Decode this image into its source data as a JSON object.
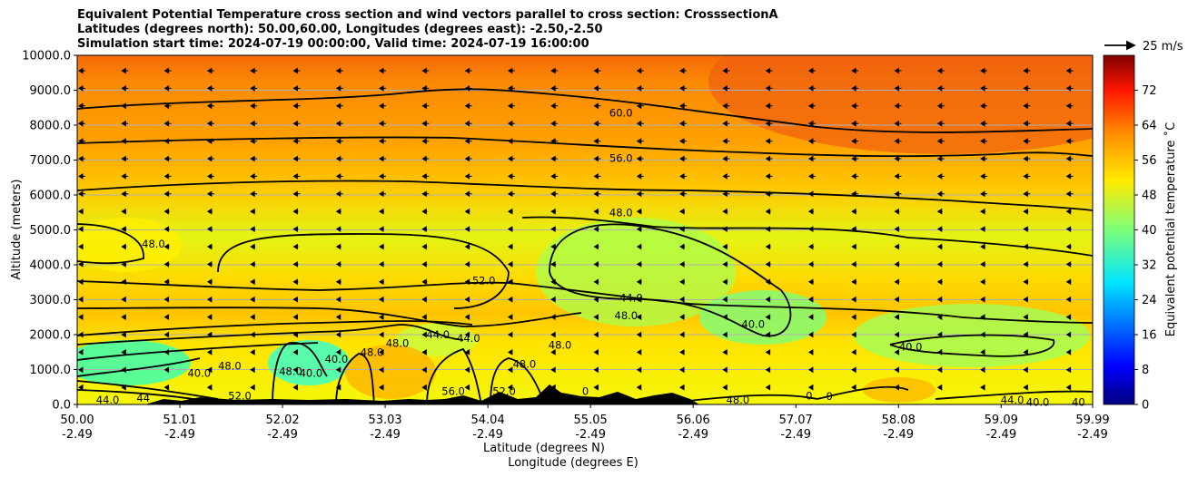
{
  "chart_data": {
    "type": "heatmap",
    "title_lines": [
      "Equivalent Potential Temperature cross section and wind vectors parallel to cross section: CrosssectionA",
      "Latitudes (degrees north): 50.00,60.00, Longitudes (degrees east): -2.50,-2.50",
      "Simulation start time: 2024-07-19 00:00:00, Valid time: 2024-07-19 16:00:00"
    ],
    "xlabel_lines": [
      "Latitude (degrees N)",
      "Longitude (degrees E)"
    ],
    "ylabel": "Altitude (meters)",
    "xlim": [
      50.0,
      59.99
    ],
    "ylim": [
      0,
      10000
    ],
    "x_ticks": [
      {
        "lat": "50.00",
        "lon": "-2.49",
        "v": 50.0
      },
      {
        "lat": "51.01",
        "lon": "-2.49",
        "v": 51.01
      },
      {
        "lat": "52.02",
        "lon": "-2.49",
        "v": 52.02
      },
      {
        "lat": "53.03",
        "lon": "-2.49",
        "v": 53.03
      },
      {
        "lat": "54.04",
        "lon": "-2.49",
        "v": 54.04
      },
      {
        "lat": "55.05",
        "lon": "-2.49",
        "v": 55.05
      },
      {
        "lat": "56.06",
        "lon": "-2.49",
        "v": 56.06
      },
      {
        "lat": "57.07",
        "lon": "-2.49",
        "v": 57.07
      },
      {
        "lat": "58.08",
        "lon": "-2.49",
        "v": 58.08
      },
      {
        "lat": "59.09",
        "lon": "-2.49",
        "v": 59.09
      },
      {
        "lat": "59.99",
        "lon": "-2.49",
        "v": 59.99
      }
    ],
    "y_ticks": [
      {
        "label": "0.0",
        "v": 0
      },
      {
        "label": "1000.0",
        "v": 1000
      },
      {
        "label": "2000.0",
        "v": 2000
      },
      {
        "label": "3000.0",
        "v": 3000
      },
      {
        "label": "4000.0",
        "v": 4000
      },
      {
        "label": "5000.0",
        "v": 5000
      },
      {
        "label": "6000.0",
        "v": 6000
      },
      {
        "label": "7000.0",
        "v": 7000
      },
      {
        "label": "8000.0",
        "v": 8000
      },
      {
        "label": "9000.0",
        "v": 9000
      },
      {
        "label": "10000.0",
        "v": 10000
      }
    ],
    "grid": "horizontal",
    "colorbar": {
      "label": "Equivalent potential temperature $^\\circ$C",
      "label_display": "Equivalent potential temperature ˚C",
      "range": [
        0,
        80
      ],
      "ticks": [
        0,
        8,
        16,
        24,
        32,
        40,
        48,
        56,
        64,
        72
      ],
      "colormap": "jet"
    },
    "wind_key": "25 m/s",
    "contour_labels": [
      {
        "text": "60.0",
        "x": 55.35,
        "y": 8350
      },
      {
        "text": "56.0",
        "x": 55.35,
        "y": 7050
      },
      {
        "text": "48.0",
        "x": 55.35,
        "y": 5500
      },
      {
        "text": "48.0",
        "x": 50.75,
        "y": 4600
      },
      {
        "text": "52.0",
        "x": 54.0,
        "y": 3550
      },
      {
        "text": "44.0",
        "x": 55.45,
        "y": 3050
      },
      {
        "text": "48.0",
        "x": 55.4,
        "y": 2550
      },
      {
        "text": "44.0",
        "x": 53.55,
        "y": 2000
      },
      {
        "text": "44.0",
        "x": 53.85,
        "y": 1900
      },
      {
        "text": "48.0",
        "x": 54.75,
        "y": 1700
      },
      {
        "text": "48.0",
        "x": 54.4,
        "y": 1150
      },
      {
        "text": "40.0",
        "x": 56.65,
        "y": 2300
      },
      {
        "text": "40.0",
        "x": 58.2,
        "y": 1650
      },
      {
        "text": "40.0",
        "x": 51.2,
        "y": 900
      },
      {
        "text": "48.0",
        "x": 51.5,
        "y": 1100
      },
      {
        "text": "48.0",
        "x": 52.1,
        "y": 950
      },
      {
        "text": "40.0",
        "x": 52.3,
        "y": 900
      },
      {
        "text": "40.0",
        "x": 52.55,
        "y": 1300
      },
      {
        "text": "48.0",
        "x": 52.9,
        "y": 1500
      },
      {
        "text": "48.0",
        "x": 53.15,
        "y": 1750
      },
      {
        "text": "56.0",
        "x": 53.7,
        "y": 380
      },
      {
        "text": "52.0",
        "x": 54.2,
        "y": 380
      },
      {
        "text": "52.0",
        "x": 51.6,
        "y": 250
      },
      {
        "text": "44.0",
        "x": 50.3,
        "y": 130
      },
      {
        "text": "44",
        "x": 50.65,
        "y": 180
      },
      {
        "text": "48.0",
        "x": 56.5,
        "y": 130
      },
      {
        "text": "0",
        "x": 57.2,
        "y": 250
      },
      {
        "text": "0",
        "x": 55.0,
        "y": 380
      },
      {
        "text": "0",
        "x": 57.4,
        "y": 230
      },
      {
        "text": "44.0",
        "x": 59.2,
        "y": 130
      },
      {
        "text": "40.0",
        "x": 59.45,
        "y": 60
      },
      {
        "text": "40",
        "x": 59.85,
        "y": 60
      }
    ]
  }
}
